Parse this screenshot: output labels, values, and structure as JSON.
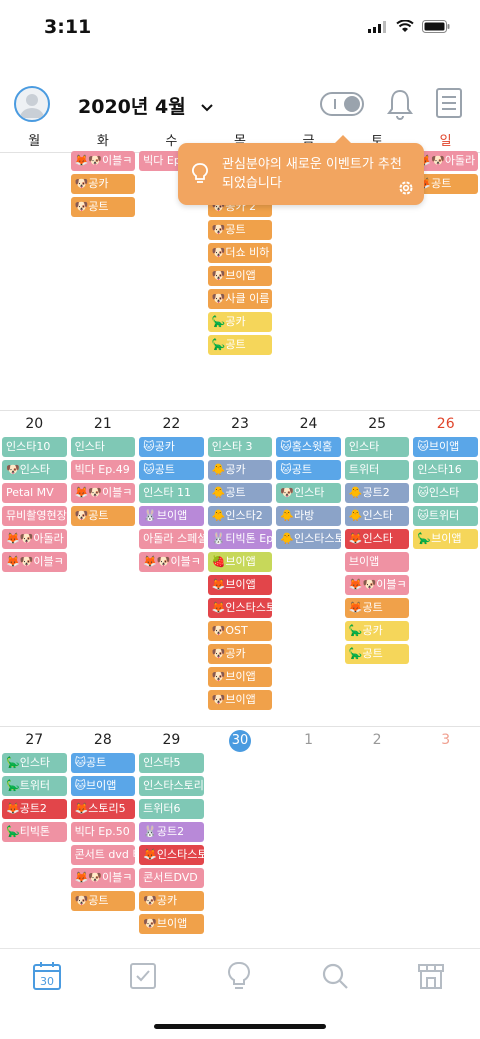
{
  "status": {
    "time": "3:11"
  },
  "header": {
    "month_label": "2020년 4월"
  },
  "weekdays": [
    "월",
    "화",
    "수",
    "목",
    "금",
    "토",
    "일"
  ],
  "tooltip": {
    "text": "관심분야의 새로운 이벤트가 추천되었습니다"
  },
  "colors": {
    "accent": "#4a9be0",
    "sunday": "#e0452b",
    "orange": "#f0a14a",
    "teal": "#7fc8b5",
    "pink": "#ef92a3",
    "red": "#e2454a",
    "yellow": "#f5d65a",
    "blue": "#5aa6e8",
    "purple": "#b889d8",
    "steel": "#8ba3c8",
    "lime": "#c7d85a"
  },
  "weeks": [
    {
      "days": [
        {
          "num": "",
          "events": []
        },
        {
          "num": "",
          "events": [
            {
              "label": "🦊🐶이블ㅋ",
              "color": "pink"
            },
            {
              "label": "🐶공카",
              "color": "orange"
            },
            {
              "label": "🐶공트",
              "color": "orange"
            }
          ]
        },
        {
          "num": "",
          "events": [
            {
              "label": "빅다 Ep",
              "color": "pink"
            }
          ]
        },
        {
          "num": "",
          "events": [
            {
              "label": "🐶공카",
              "color": "red"
            },
            {
              "label": "❤️🐶🎂🐶",
              "color": "orange"
            },
            {
              "label": "🐶공카 2",
              "color": "orange"
            },
            {
              "label": "🐶공트",
              "color": "orange"
            },
            {
              "label": "🐶더쇼 비하",
              "color": "orange"
            },
            {
              "label": "🐶브이앱",
              "color": "orange"
            },
            {
              "label": "🐶사클 이름",
              "color": "orange"
            },
            {
              "label": "🦕공카",
              "color": "yellow"
            },
            {
              "label": "🦕공트",
              "color": "yellow"
            }
          ]
        },
        {
          "num": "",
          "events": []
        },
        {
          "num": "",
          "events": [
            {
              "label": "🦊🐶이블",
              "color": "pink"
            },
            {
              "label": "🦕브이앱",
              "color": "yellow"
            }
          ]
        },
        {
          "num": "",
          "events": [
            {
              "label": "🦊🐶아돌라",
              "color": "pink"
            },
            {
              "label": "🦊공트",
              "color": "orange"
            }
          ]
        }
      ]
    },
    {
      "days": [
        {
          "num": "20",
          "events": [
            {
              "label": "인스타10",
              "color": "teal"
            },
            {
              "label": "🐶인스타",
              "color": "teal"
            },
            {
              "label": "Petal MV",
              "color": "pink"
            },
            {
              "label": "뮤비촬영현장",
              "color": "pink"
            },
            {
              "label": "🦊🐶아돌라",
              "color": "pink"
            },
            {
              "label": "🦊🐶이블ㅋ",
              "color": "pink"
            }
          ]
        },
        {
          "num": "21",
          "events": [
            {
              "label": "인스타",
              "color": "teal"
            },
            {
              "label": "빅다 Ep.49",
              "color": "pink"
            },
            {
              "label": "🦊🐶이블ㅋ",
              "color": "pink"
            },
            {
              "label": "🐶공트",
              "color": "orange"
            }
          ]
        },
        {
          "num": "22",
          "events": [
            {
              "label": "🐱공카",
              "color": "blue"
            },
            {
              "label": "🐱공트",
              "color": "blue"
            },
            {
              "label": "인스타 11",
              "color": "teal"
            },
            {
              "label": "🐰브이앱",
              "color": "purple"
            },
            {
              "label": "아돌라 스페셜",
              "color": "pink"
            },
            {
              "label": "🦊🐶이블ㅋ",
              "color": "pink"
            }
          ]
        },
        {
          "num": "23",
          "events": [
            {
              "label": "인스타 3",
              "color": "teal"
            },
            {
              "label": "🐥공카",
              "color": "steel"
            },
            {
              "label": "🐥공트",
              "color": "steel"
            },
            {
              "label": "🐥인스타2",
              "color": "steel"
            },
            {
              "label": "🐰티빅톤 Ep",
              "color": "purple"
            },
            {
              "label": "🍓브이앱",
              "color": "lime"
            },
            {
              "label": "🦊브이앱",
              "color": "red"
            },
            {
              "label": "🦊인스타스토리",
              "color": "red"
            },
            {
              "label": "🐶OST",
              "color": "orange"
            },
            {
              "label": "🐶공카",
              "color": "orange"
            },
            {
              "label": "🐶브이앱",
              "color": "orange"
            },
            {
              "label": "🐶브이앱",
              "color": "orange"
            }
          ]
        },
        {
          "num": "24",
          "events": [
            {
              "label": "🐱홈스윗홈",
              "color": "blue"
            },
            {
              "label": "🐱공트",
              "color": "blue"
            },
            {
              "label": "🐶인스타",
              "color": "teal"
            },
            {
              "label": "🐥라방",
              "color": "steel"
            },
            {
              "label": "🐥인스타스토",
              "color": "steel"
            }
          ]
        },
        {
          "num": "25",
          "events": [
            {
              "label": "인스타",
              "color": "teal"
            },
            {
              "label": "트위터",
              "color": "teal"
            },
            {
              "label": "🐥공트2",
              "color": "steel"
            },
            {
              "label": "🐥인스타",
              "color": "steel"
            },
            {
              "label": "🦊인스타",
              "color": "red"
            },
            {
              "label": "브이앱",
              "color": "pink"
            },
            {
              "label": "🦊🐶이블ㅋ",
              "color": "pink"
            },
            {
              "label": "🦊공트",
              "color": "orange"
            },
            {
              "label": "🦕공카",
              "color": "yellow"
            },
            {
              "label": "🦕공트",
              "color": "yellow"
            }
          ]
        },
        {
          "num": "26",
          "events": [
            {
              "label": "🐱브이앱",
              "color": "blue"
            },
            {
              "label": "인스타16",
              "color": "teal"
            },
            {
              "label": "🐱인스타",
              "color": "teal"
            },
            {
              "label": "🐱트위터",
              "color": "teal"
            },
            {
              "label": "🦕브이앱",
              "color": "yellow"
            }
          ]
        }
      ]
    },
    {
      "days": [
        {
          "num": "27",
          "events": [
            {
              "label": "🦕인스타",
              "color": "teal"
            },
            {
              "label": "🦕트위터",
              "color": "teal"
            },
            {
              "label": "🦊공트2",
              "color": "red"
            },
            {
              "label": "🦕티빅톤",
              "color": "pink"
            }
          ]
        },
        {
          "num": "28",
          "events": [
            {
              "label": "🐱공트",
              "color": "blue"
            },
            {
              "label": "🐱브이앱",
              "color": "blue"
            },
            {
              "label": "🦊스토리5",
              "color": "red"
            },
            {
              "label": "빅다 Ep.50",
              "color": "pink"
            },
            {
              "label": "콘서트 dvd 티저",
              "color": "pink"
            },
            {
              "label": "🦊🐶이블ㅋ",
              "color": "pink"
            },
            {
              "label": "🐶공트",
              "color": "orange"
            }
          ]
        },
        {
          "num": "29",
          "events": [
            {
              "label": "인스타5",
              "color": "teal"
            },
            {
              "label": "인스타스토리",
              "color": "teal"
            },
            {
              "label": "트위터6",
              "color": "teal"
            },
            {
              "label": "🐰공트2",
              "color": "purple"
            },
            {
              "label": "🦊인스타스토리",
              "color": "red"
            },
            {
              "label": "콘서트DVD",
              "color": "pink"
            },
            {
              "label": "🐶공카",
              "color": "orange"
            },
            {
              "label": "🐶브이앱",
              "color": "orange"
            }
          ]
        },
        {
          "num": "30",
          "today": true,
          "events": []
        },
        {
          "num": "1",
          "other": true,
          "events": []
        },
        {
          "num": "2",
          "other": true,
          "events": []
        },
        {
          "num": "3",
          "other": true,
          "events": []
        }
      ]
    }
  ],
  "tabbar": {
    "calendar_day": "30",
    "items": [
      "calendar-icon",
      "check-icon",
      "lightbulb-icon",
      "search-icon",
      "store-icon"
    ]
  }
}
